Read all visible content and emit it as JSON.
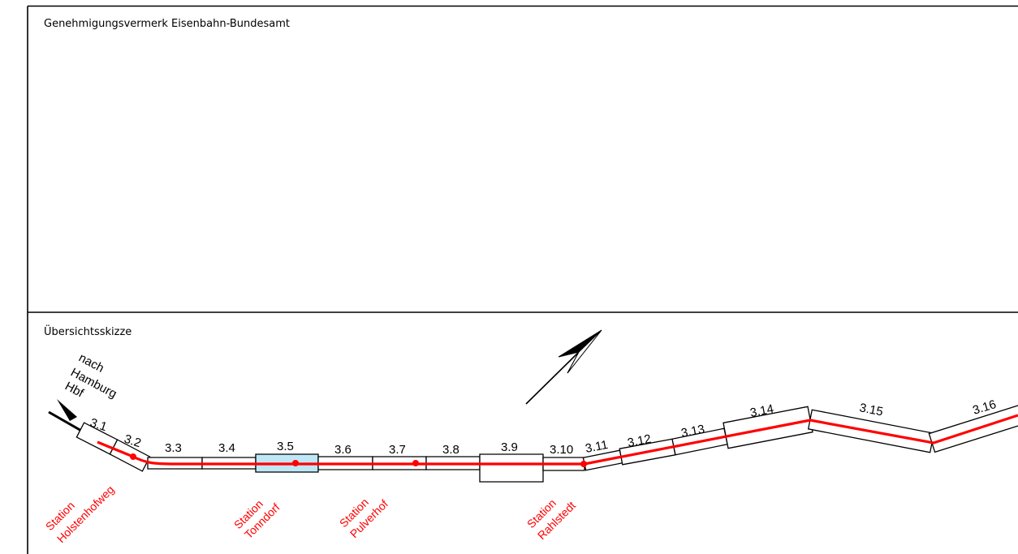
{
  "approval_panel": {
    "title": "Genehmigungsvermerk Eisenbahn-Bundesamt"
  },
  "overview_panel": {
    "title": "Übersichtsskizze"
  },
  "direction": {
    "lines": [
      "nach",
      "Hamburg",
      "Hbf"
    ]
  },
  "north_arrow": {
    "icon": "north-arrow-icon"
  },
  "segments": [
    "3.1",
    "3.2",
    "3.3",
    "3.4",
    "3.5",
    "3.6",
    "3.7",
    "3.8",
    "3.9",
    "3.10",
    "3.11",
    "3.12",
    "3.13",
    "3.14",
    "3.15",
    "3.16"
  ],
  "highlighted_segment": "3.5",
  "stations": [
    {
      "lines": [
        "Station",
        "Holstenhofweg"
      ]
    },
    {
      "lines": [
        "Station",
        "Tonndorf"
      ]
    },
    {
      "lines": [
        "Station",
        "Pulverhof"
      ]
    },
    {
      "lines": [
        "Station",
        "Rahlstedt"
      ]
    }
  ],
  "colors": {
    "track": "#ff0000",
    "station_text": "#ff0000",
    "highlight": "#bfe7f6",
    "frame": "#000000"
  }
}
